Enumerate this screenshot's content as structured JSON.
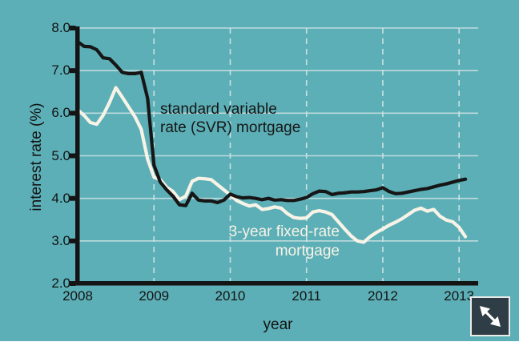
{
  "page": {
    "background_color": "#5cafb6",
    "bottom_strip_color": "#ffffff"
  },
  "chart": {
    "y_axis_title": "interest rate (%)",
    "x_axis_title": "year",
    "y_tick_labels": [
      "8.0",
      "7.0",
      "6.0",
      "5.0",
      "4.0",
      "3.0",
      "2.0"
    ],
    "y_tick_values": [
      8,
      7,
      6,
      5,
      4,
      3,
      2
    ],
    "x_tick_labels": [
      "2008",
      "2009",
      "2010",
      "2011",
      "2012",
      "2013"
    ],
    "x_tick_values": [
      2008,
      2009,
      2010,
      2011,
      2012,
      2013
    ],
    "annotations": {
      "svr_line1": "standard variable",
      "svr_line2": "rate (SVR) mortgage",
      "fixed_line1": "3-year fixed-rate",
      "fixed_line2": "mortgage"
    },
    "colors": {
      "axis": "#141414",
      "grid_horizontal": "#bedbdd",
      "grid_vertical_dashed": "#c9e1e2",
      "svr_line": "#161616",
      "fixed_line": "#f8f3e7"
    }
  },
  "chart_data": {
    "type": "line",
    "title": "",
    "xlabel": "year",
    "ylabel": "interest rate (%)",
    "xlim": [
      2008,
      2013.25
    ],
    "ylim": [
      2.0,
      8.0
    ],
    "x_start": "2008-01",
    "x_interval": "month",
    "grid": {
      "horizontal_values": [
        3,
        4,
        5,
        6,
        7,
        8
      ],
      "vertical_years": [
        2009,
        2010,
        2011,
        2012,
        2013
      ]
    },
    "legend_position": "inline-annotations",
    "series": [
      {
        "name": "standard variable rate (SVR) mortgage",
        "color": "#161616",
        "values": [
          7.68,
          7.57,
          7.56,
          7.49,
          7.3,
          7.28,
          7.13,
          6.96,
          6.93,
          6.93,
          6.96,
          6.35,
          4.78,
          4.38,
          4.2,
          4.05,
          3.85,
          3.83,
          4.12,
          3.96,
          3.94,
          3.94,
          3.9,
          3.96,
          4.1,
          4.04,
          4.01,
          4.02,
          4.0,
          3.97,
          4.0,
          3.96,
          3.97,
          3.95,
          3.95,
          3.98,
          4.02,
          4.11,
          4.17,
          4.16,
          4.09,
          4.12,
          4.13,
          4.15,
          4.15,
          4.16,
          4.18,
          4.2,
          4.25,
          4.16,
          4.11,
          4.12,
          4.15,
          4.18,
          4.21,
          4.23,
          4.27,
          4.31,
          4.34,
          4.38,
          4.42,
          4.45
        ]
      },
      {
        "name": "3-year fixed-rate mortgage",
        "color": "#f8f3e7",
        "values": [
          6.08,
          5.95,
          5.78,
          5.74,
          5.95,
          6.25,
          6.6,
          6.38,
          6.15,
          5.92,
          5.62,
          4.92,
          4.5,
          4.44,
          4.26,
          4.16,
          3.97,
          4.05,
          4.4,
          4.47,
          4.46,
          4.44,
          4.32,
          4.2,
          4.08,
          3.95,
          3.88,
          3.82,
          3.85,
          3.74,
          3.76,
          3.8,
          3.77,
          3.64,
          3.55,
          3.53,
          3.54,
          3.68,
          3.71,
          3.68,
          3.62,
          3.45,
          3.28,
          3.12,
          3.0,
          2.97,
          3.1,
          3.2,
          3.28,
          3.37,
          3.44,
          3.52,
          3.62,
          3.72,
          3.77,
          3.7,
          3.74,
          3.58,
          3.49,
          3.45,
          3.32,
          3.1
        ]
      }
    ]
  },
  "expand_button": {
    "icon": "diagonal-resize-arrow"
  }
}
